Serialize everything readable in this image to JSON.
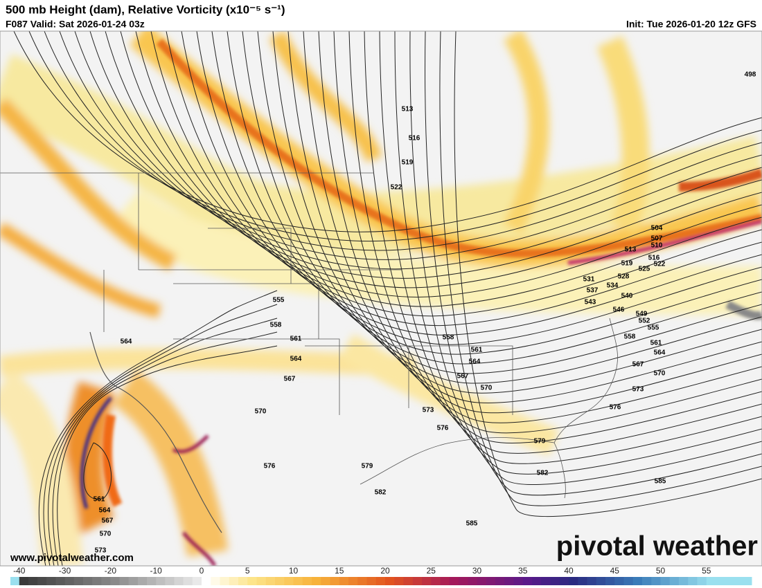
{
  "header": {
    "title": "500 mb Height (dam), Relative Vorticity (x10⁻⁵ s⁻¹)",
    "valid": "F087 Valid: Sat 2026-01-24 03z",
    "init": "Init: Tue 2026-01-20 12z GFS"
  },
  "contour_labels": [
    498,
    513,
    516,
    519,
    522,
    504,
    507,
    510,
    513,
    516,
    519,
    522,
    525,
    528,
    531,
    534,
    537,
    540,
    543,
    546,
    549,
    552,
    555,
    558,
    561,
    564,
    567,
    570,
    573,
    576,
    579,
    582,
    585,
    585,
    555,
    558,
    561,
    558,
    561,
    564,
    564,
    567,
    567,
    570,
    570,
    573,
    576,
    576,
    579,
    582,
    564,
    561,
    564,
    567,
    570,
    573
  ],
  "colorbar": {
    "ticks": [
      -40,
      -30,
      -20,
      -10,
      0,
      5,
      10,
      15,
      20,
      25,
      30,
      35,
      40,
      45,
      50,
      55
    ]
  },
  "watermark": "pivotal weather",
  "website": "www.pivotalweather.com"
}
